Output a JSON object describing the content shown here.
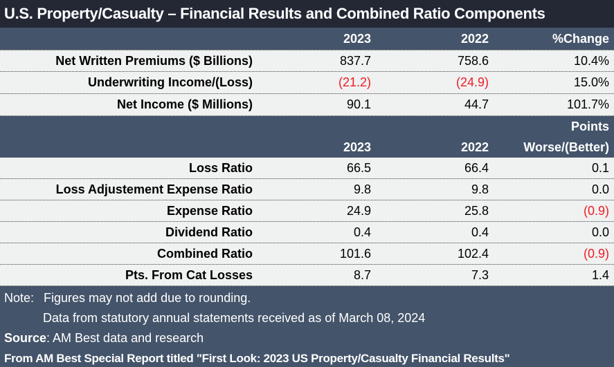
{
  "title": "U.S. Property/Casualty – Financial Results and Combined Ratio Components",
  "colors": {
    "title_bg": "#232834",
    "header_bg": "#44546A",
    "row_bg": "#f0f1f1",
    "negative": "#ed1c24"
  },
  "financial": {
    "headers": {
      "y2023": "2023",
      "y2022": "2022",
      "change": "%Change"
    },
    "rows": [
      {
        "label": "Net Written Premiums ($ Billions)",
        "y2023": "837.7",
        "y2022": "758.6",
        "change": "10.4%"
      },
      {
        "label": "Underwriting Income/(Loss)",
        "y2023": "(21.2)",
        "y2022": "(24.9)",
        "change": "15.0%"
      },
      {
        "label": "Net Income ($ Millions)",
        "y2023": "90.1",
        "y2022": "44.7",
        "change": "101.7%"
      }
    ]
  },
  "ratios": {
    "headers": {
      "points": "Points",
      "y2023": "2023",
      "y2022": "2022",
      "change": "Worse/(Better)"
    },
    "rows": [
      {
        "label": "Loss Ratio",
        "y2023": "66.5",
        "y2022": "66.4",
        "change": "0.1"
      },
      {
        "label": "Loss Adjustement Expense Ratio",
        "y2023": "9.8",
        "y2022": "9.8",
        "change": "0.0"
      },
      {
        "label": "Expense Ratio",
        "y2023": "24.9",
        "y2022": "25.8",
        "change": "(0.9)"
      },
      {
        "label": "Dividend Ratio",
        "y2023": "0.4",
        "y2022": "0.4",
        "change": "0.0"
      },
      {
        "label": "Combined Ratio",
        "y2023": "101.6",
        "y2022": "102.4",
        "change": "(0.9)"
      },
      {
        "label": "Pts. From Cat Losses",
        "y2023": "8.7",
        "y2022": "7.3",
        "change": "1.4"
      }
    ]
  },
  "footer": {
    "note_label": "Note:",
    "note_text": "Figures may not add due to rounding.",
    "note_line2": "Data from statutory annual statements received as of March 08, 2024",
    "source_label": "Source",
    "source_text": ": AM Best data and research",
    "report_line": "From AM Best Special Report titled \"First Look: 2023 US Property/Casualty Financial Results\""
  }
}
